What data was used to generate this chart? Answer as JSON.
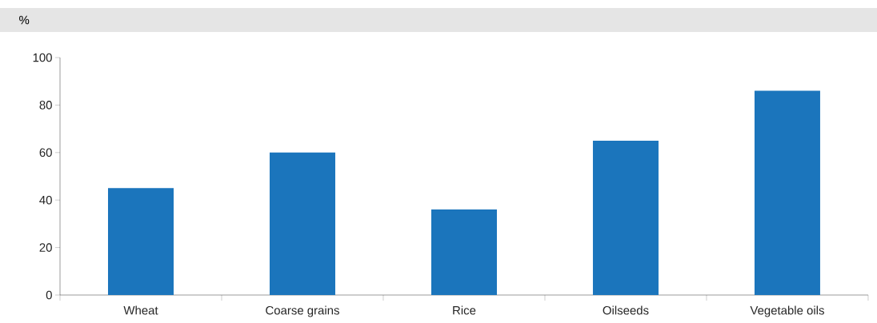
{
  "chart_data": {
    "type": "bar",
    "ylabel": "%",
    "categories": [
      "Wheat",
      "Coarse grains",
      "Rice",
      "Oilseeds",
      "Vegetable oils"
    ],
    "values": [
      45,
      60,
      36,
      65,
      86
    ],
    "color": "#1b75bc",
    "ylim": [
      0,
      100
    ],
    "yticks": [
      0,
      20,
      40,
      60,
      80,
      100
    ]
  }
}
